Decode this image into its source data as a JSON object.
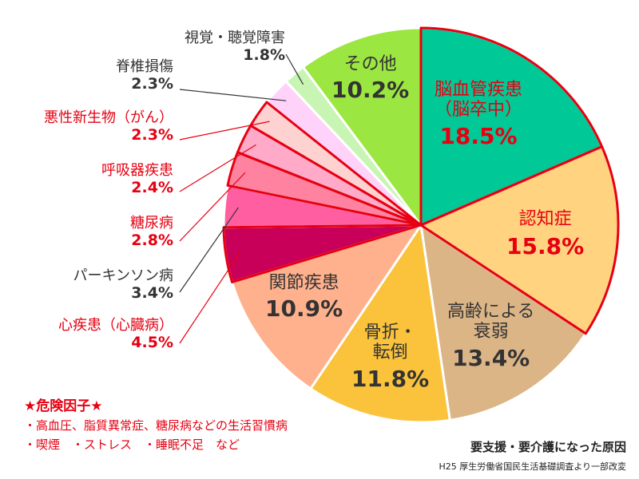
{
  "chart_data": {
    "type": "pie",
    "slices": [
      {
        "label": "脳血管疾患\n（脳卒中）",
        "value": 18.5,
        "value_label": "18.5%",
        "color": "#00c896",
        "risk": true
      },
      {
        "label": "認知症",
        "value": 15.8,
        "value_label": "15.8%",
        "color": "#ffd37f",
        "risk": true
      },
      {
        "label": "高齢による\n衰弱",
        "value": 13.4,
        "value_label": "13.4%",
        "color": "#dcb587",
        "risk": false
      },
      {
        "label": "骨折・\n転倒",
        "value": 11.8,
        "value_label": "11.8%",
        "color": "#fbc23c",
        "risk": false
      },
      {
        "label": "関節疾患",
        "value": 10.9,
        "value_label": "10.9%",
        "color": "#ffb08c",
        "risk": false
      },
      {
        "label": "心疾患（心臓病）",
        "value": 4.5,
        "value_label": "4.5%",
        "color": "#c8005a",
        "risk": true
      },
      {
        "label": "パーキンソン病",
        "value": 3.4,
        "value_label": "3.4%",
        "color": "#ff5fa0",
        "risk": false
      },
      {
        "label": "糖尿病",
        "value": 2.8,
        "value_label": "2.8%",
        "color": "#ff82a0",
        "risk": true
      },
      {
        "label": "呼吸器疾患",
        "value": 2.4,
        "value_label": "2.4%",
        "color": "#ffaac8",
        "risk": true
      },
      {
        "label": "悪性新生物（がん）",
        "value": 2.3,
        "value_label": "2.3%",
        "color": "#ffd2d2",
        "risk": true
      },
      {
        "label": "脊椎損傷",
        "value": 2.3,
        "value_label": "2.3%",
        "color": "#ffd2fa",
        "risk": false
      },
      {
        "label": "視覚・聴覚障害",
        "value": 1.8,
        "value_label": "1.8%",
        "color": "#c8f5b4",
        "risk": false
      },
      {
        "label": "その他",
        "value": 10.2,
        "value_label": "10.2%",
        "color": "#9be641",
        "risk": false
      }
    ],
    "risk_color": "#e60012",
    "normal_text_color": "#333333"
  },
  "risk_factors": {
    "title": "★危険因子★",
    "items": [
      "・高血圧、脂質異常症、糖尿病などの生活習慣病",
      "・喫煙　・ストレス　・睡眠不足　など"
    ]
  },
  "caption": {
    "title": "要支援・要介護になった原因",
    "source": "H25 厚生労働省国民生活基礎調査より一部改変"
  }
}
